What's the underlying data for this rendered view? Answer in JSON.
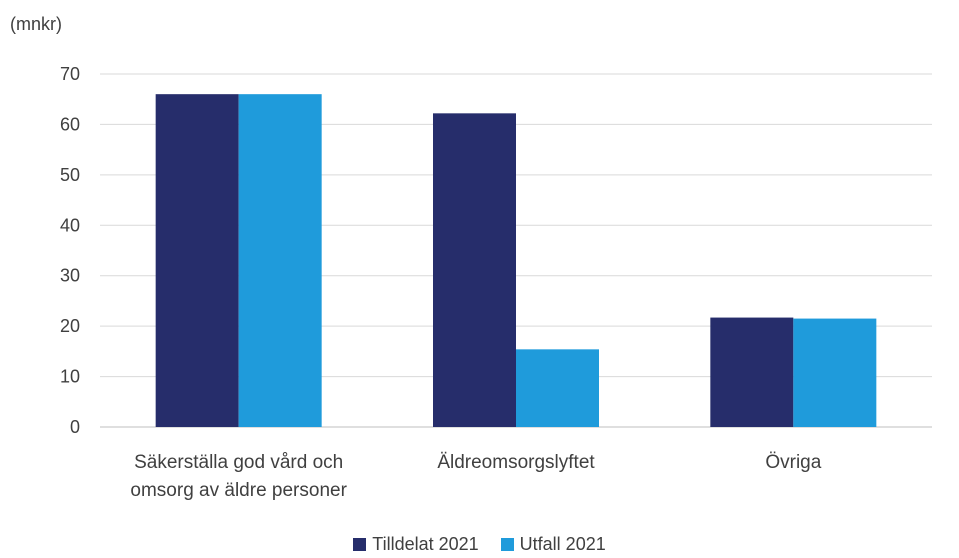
{
  "chart_data": {
    "type": "bar",
    "unit_label": "(mnkr)",
    "categories": [
      [
        "Säkerställa god vård och",
        "omsorg av äldre personer"
      ],
      [
        "Äldreomsorgslyftet"
      ],
      [
        "Övriga"
      ]
    ],
    "series": [
      {
        "name": "Tilldelat 2021",
        "color": "#262D6B",
        "values": [
          66,
          62.2,
          21.7
        ]
      },
      {
        "name": "Utfall 2021",
        "color": "#1F9BDB",
        "values": [
          66,
          15.4,
          21.5
        ]
      }
    ],
    "ylim": [
      0,
      70
    ],
    "yticks": [
      0,
      10,
      20,
      30,
      40,
      50,
      60,
      70
    ],
    "grid": true,
    "legend_position": "bottom"
  }
}
